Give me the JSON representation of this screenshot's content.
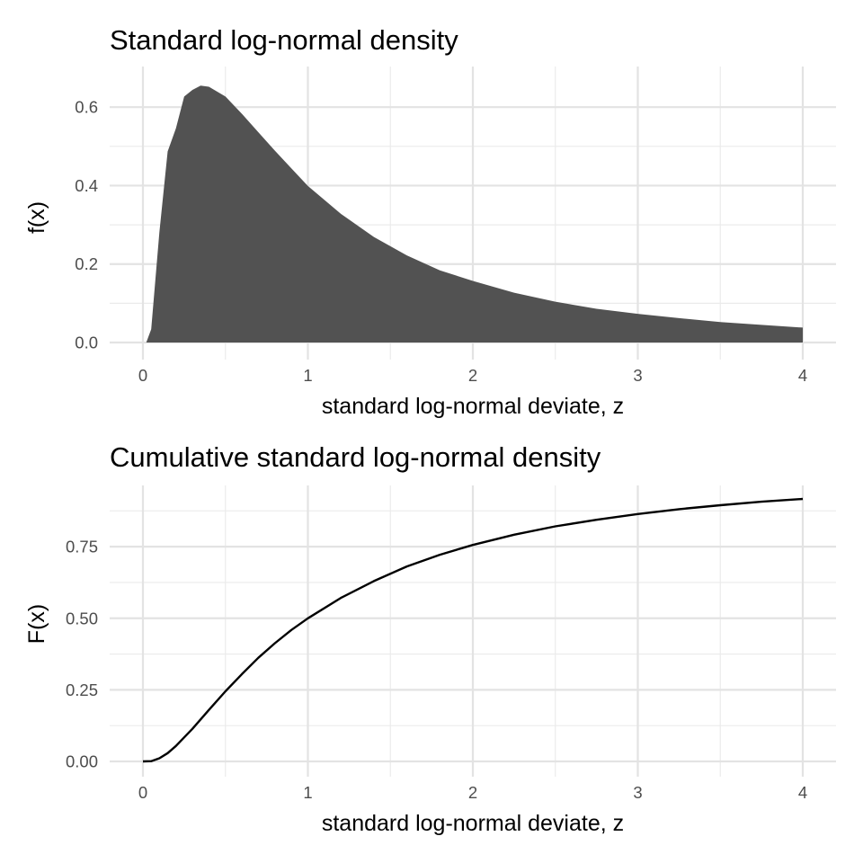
{
  "chart_data": [
    {
      "type": "area",
      "title": "Standard log-normal density",
      "xlabel": "standard log-normal deviate, z",
      "ylabel": "f(x)",
      "xlim": [
        0,
        4
      ],
      "ylim": [
        0,
        0.66
      ],
      "x_ticks": [
        "0",
        "1",
        "2",
        "3",
        "4"
      ],
      "y_ticks": [
        "0.0",
        "0.2",
        "0.4",
        "0.6"
      ],
      "grid": true,
      "legend": "none",
      "fill_color": "#525252",
      "x": [
        0.02,
        0.05,
        0.1,
        0.15,
        0.2,
        0.25,
        0.3,
        0.35,
        0.4,
        0.5,
        0.6,
        0.7,
        0.8,
        0.9,
        1.0,
        1.2,
        1.4,
        1.6,
        1.8,
        2.0,
        2.25,
        2.5,
        2.75,
        3.0,
        3.25,
        3.5,
        3.75,
        4.0
      ],
      "y": [
        0.0,
        0.034,
        0.281,
        0.487,
        0.546,
        0.627,
        0.644,
        0.655,
        0.652,
        0.627,
        0.583,
        0.536,
        0.489,
        0.444,
        0.399,
        0.328,
        0.269,
        0.222,
        0.184,
        0.157,
        0.127,
        0.104,
        0.086,
        0.073,
        0.062,
        0.052,
        0.045,
        0.038
      ]
    },
    {
      "type": "line",
      "title": "Cumulative standard log-normal density",
      "xlabel": "standard log-normal deviate, z",
      "ylabel": "F(x)",
      "xlim": [
        0,
        4
      ],
      "ylim": [
        0,
        0.92
      ],
      "x_ticks": [
        "0",
        "1",
        "2",
        "3",
        "4"
      ],
      "y_ticks": [
        "0.00",
        "0.25",
        "0.50",
        "0.75"
      ],
      "grid": true,
      "legend": "none",
      "line_color": "#000000",
      "x": [
        0.0,
        0.05,
        0.1,
        0.15,
        0.2,
        0.3,
        0.4,
        0.5,
        0.6,
        0.7,
        0.8,
        0.9,
        1.0,
        1.2,
        1.4,
        1.6,
        1.8,
        2.0,
        2.25,
        2.5,
        2.75,
        3.0,
        3.25,
        3.5,
        3.75,
        4.0
      ],
      "y": [
        0.0,
        0.001,
        0.011,
        0.029,
        0.054,
        0.114,
        0.18,
        0.245,
        0.305,
        0.362,
        0.413,
        0.459,
        0.5,
        0.571,
        0.63,
        0.681,
        0.722,
        0.756,
        0.792,
        0.821,
        0.844,
        0.864,
        0.881,
        0.895,
        0.907,
        0.917
      ]
    }
  ]
}
